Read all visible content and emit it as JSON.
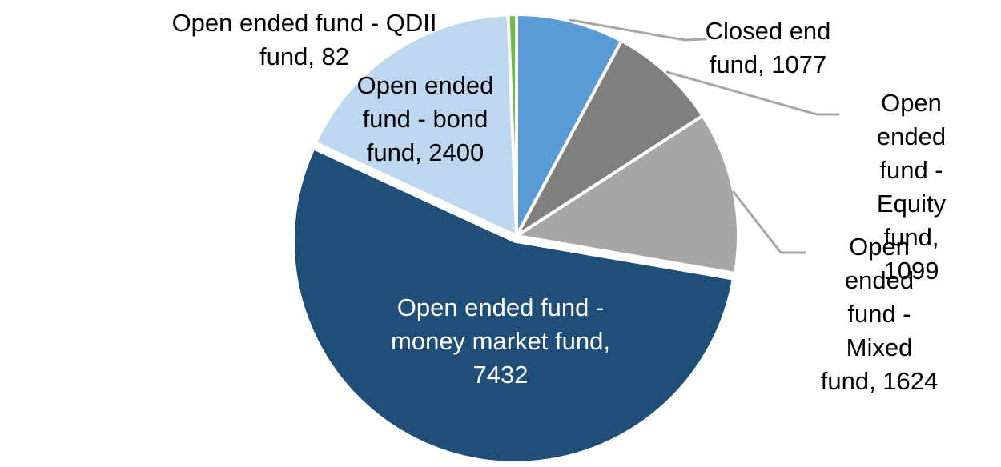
{
  "chart_data": {
    "type": "pie",
    "title": "",
    "start_angle_deg": 0,
    "direction": "clockwise",
    "total": 13714,
    "legend_position": "none",
    "label_style": "outside-with-leader-lines-and-inside-for-largest",
    "slice_border_color": "#FFFFFF",
    "leader_line_color": "#A6A6A6",
    "background_color": "#FFFFFF",
    "segments": [
      {
        "id": "closed-end",
        "label": "Closed end fund",
        "value": 1077,
        "color": "#5B9BD5",
        "label_display": "Closed end\nfund, 1077",
        "label_color": "#000000",
        "label_placement": "outside-right"
      },
      {
        "id": "equity",
        "label": "Open ended fund - Equity fund",
        "value": 1099,
        "color": "#7F7F7F",
        "label_display": "Open ended\nfund - Equity\nfund, 1099",
        "label_color": "#000000",
        "label_placement": "outside-right"
      },
      {
        "id": "mixed",
        "label": "Open ended fund - Mixed fund",
        "value": 1624,
        "color": "#A6A6A6",
        "label_display": "Open ended\nfund - Mixed\nfund, 1624",
        "label_color": "#000000",
        "label_placement": "outside-right"
      },
      {
        "id": "money-market",
        "label": "Open ended fund - money market fund",
        "value": 7432,
        "color": "#1F4E79",
        "label_display": "Open ended fund -\nmoney market fund,\n7432",
        "label_color": "#FFFFFF",
        "label_placement": "inside"
      },
      {
        "id": "bond",
        "label": "Open ended fund - bond fund",
        "value": 2400,
        "color": "#BDD7EE",
        "label_display": "Open ended\nfund - bond\nfund, 2400",
        "label_color": "#000000",
        "label_placement": "inside-top-left"
      },
      {
        "id": "qdii",
        "label": "Open ended fund - QDII fund",
        "value": 82,
        "color": "#6CBD45",
        "label_display": "Open ended fund - QDII\nfund, 82",
        "label_color": "#000000",
        "label_placement": "outside-top-left"
      }
    ]
  }
}
